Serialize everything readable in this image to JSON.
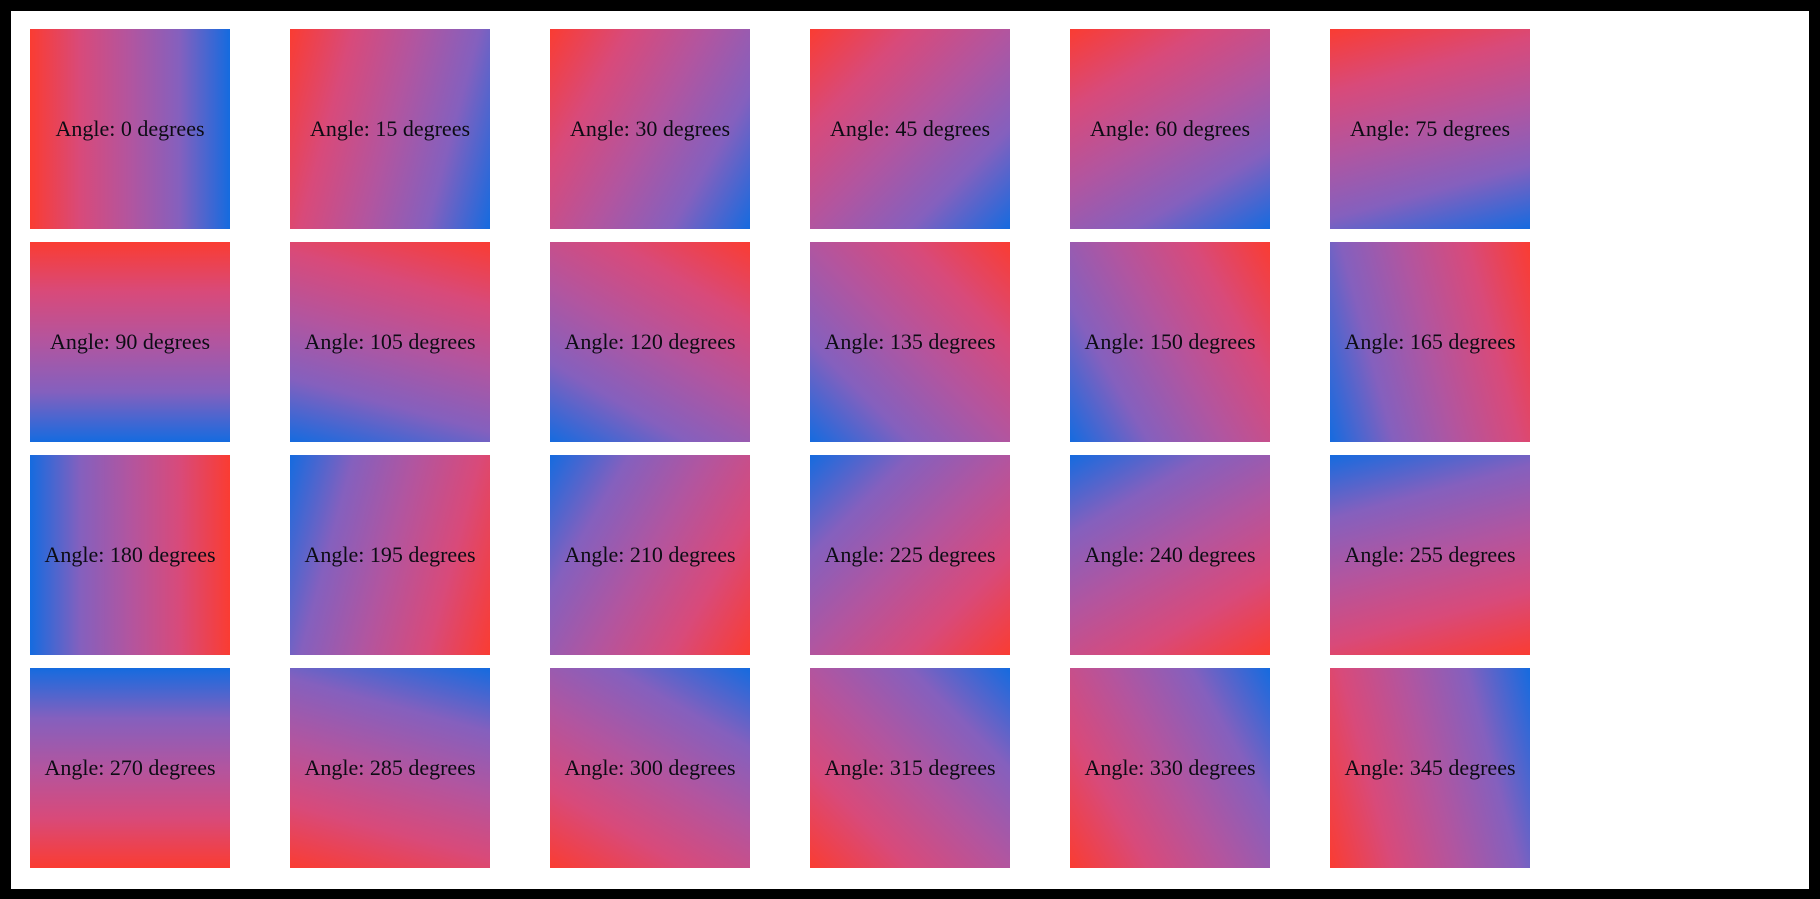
{
  "page": {
    "frame_color": "#000000",
    "background_color": "#ffffff"
  },
  "gradient": {
    "start_color": "#fa3c32",
    "end_color": "#156bdf",
    "stops": [
      [
        "#fa3c32",
        "0%"
      ],
      [
        "#d84a7a",
        "25%"
      ],
      [
        "#b2559f",
        "50%"
      ],
      [
        "#8460be",
        "75%"
      ],
      [
        "#156bdf",
        "100%"
      ]
    ]
  },
  "tiles": [
    {
      "angle": 0,
      "label": "Angle: 0 degrees"
    },
    {
      "angle": 15,
      "label": "Angle: 15 degrees"
    },
    {
      "angle": 30,
      "label": "Angle: 30 degrees"
    },
    {
      "angle": 45,
      "label": "Angle: 45 degrees"
    },
    {
      "angle": 60,
      "label": "Angle: 60 degrees"
    },
    {
      "angle": 75,
      "label": "Angle: 75 degrees"
    },
    {
      "angle": 90,
      "label": "Angle: 90 degrees"
    },
    {
      "angle": 105,
      "label": "Angle: 105 degrees"
    },
    {
      "angle": 120,
      "label": "Angle: 120 degrees"
    },
    {
      "angle": 135,
      "label": "Angle: 135 degrees"
    },
    {
      "angle": 150,
      "label": "Angle: 150 degrees"
    },
    {
      "angle": 165,
      "label": "Angle: 165 degrees"
    },
    {
      "angle": 180,
      "label": "Angle: 180 degrees"
    },
    {
      "angle": 195,
      "label": "Angle: 195 degrees"
    },
    {
      "angle": 210,
      "label": "Angle: 210 degrees"
    },
    {
      "angle": 225,
      "label": "Angle: 225 degrees"
    },
    {
      "angle": 240,
      "label": "Angle: 240 degrees"
    },
    {
      "angle": 255,
      "label": "Angle: 255 degrees"
    },
    {
      "angle": 270,
      "label": "Angle: 270 degrees"
    },
    {
      "angle": 285,
      "label": "Angle: 285 degrees"
    },
    {
      "angle": 300,
      "label": "Angle: 300 degrees"
    },
    {
      "angle": 315,
      "label": "Angle: 315 degrees"
    },
    {
      "angle": 330,
      "label": "Angle: 330 degrees"
    },
    {
      "angle": 345,
      "label": "Angle: 345 degrees"
    }
  ]
}
